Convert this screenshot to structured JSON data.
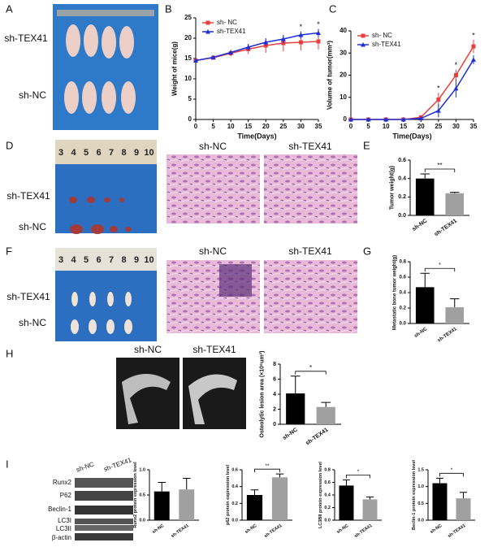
{
  "panels": [
    "A",
    "B",
    "C",
    "D",
    "E",
    "F",
    "G",
    "H",
    "I"
  ],
  "photo_a": {
    "labels": [
      "sh-TEX41",
      "sh-NC"
    ]
  },
  "photo_d": {
    "ruler": [
      "3",
      "4",
      "5",
      "6",
      "7",
      "8",
      "9",
      "10"
    ],
    "labels": [
      "sh-TEX41",
      "sh-NC"
    ],
    "histology": [
      "sh-NC",
      "sh-TEX41"
    ]
  },
  "photo_f": {
    "ruler": [
      "3",
      "4",
      "5",
      "6",
      "7",
      "8",
      "9",
      "10"
    ],
    "labels": [
      "sh-TEX41",
      "sh-NC"
    ],
    "histology": [
      "sh-NC",
      "sh-TEX41"
    ]
  },
  "photo_h": {
    "labels": [
      "sh-NC",
      "sh-TEX41"
    ]
  },
  "blot_i": {
    "lanes": [
      "sh-NC",
      "sh-TEX41"
    ],
    "proteins": [
      "Runx2",
      "P62",
      "Beclin-1",
      "LC3I",
      "LC3II",
      "β-actin"
    ]
  },
  "chart_data": [
    {
      "type": "line",
      "xlabel": "Time(Days)",
      "ylabel": "Weight of mice(g)",
      "legend": "upper left",
      "x": [
        0,
        5,
        10,
        15,
        20,
        25,
        30,
        35
      ],
      "xlim": [
        0,
        35
      ],
      "xticks": [
        0,
        5,
        10,
        15,
        20,
        25,
        30,
        35
      ],
      "ylim": [
        0,
        25
      ],
      "yticks": [
        0,
        5,
        10,
        15,
        20,
        25
      ],
      "series": [
        {
          "name": "sh- NC",
          "color": "#e8403f",
          "values": [
            14.5,
            15.2,
            16.3,
            17.3,
            18.2,
            18.8,
            19.0,
            19.2
          ],
          "errors": [
            0.4,
            0.5,
            0.8,
            1.2,
            1.8,
            2.0,
            2.0,
            2.0
          ]
        },
        {
          "name": "sh-TEX41",
          "color": "#1f2fd6",
          "values": [
            14.5,
            15.3,
            16.5,
            17.8,
            19.0,
            19.8,
            20.8,
            21.3
          ],
          "errors": [
            0.3,
            0.4,
            0.6,
            0.8,
            0.9,
            1.0,
            0.9,
            1.0
          ]
        }
      ],
      "significance": [
        {
          "x": 30,
          "label": "*"
        },
        {
          "x": 35,
          "label": "*"
        }
      ]
    },
    {
      "type": "line",
      "xlabel": "Time(Days)",
      "ylabel": "Volume of tumor(mm³)",
      "legend": "upper left",
      "x": [
        0,
        5,
        10,
        15,
        20,
        25,
        30,
        35
      ],
      "xlim": [
        0,
        35
      ],
      "xticks": [
        0,
        5,
        10,
        15,
        20,
        25,
        30,
        35
      ],
      "ylim": [
        0,
        40
      ],
      "yticks": [
        0,
        10,
        20,
        30,
        40
      ],
      "series": [
        {
          "name": "sh- NC",
          "color": "#e8403f",
          "values": [
            0,
            0,
            0,
            0,
            1,
            9,
            20,
            33
          ],
          "errors": [
            0,
            0,
            0,
            0,
            0.5,
            3,
            2.5,
            3
          ]
        },
        {
          "name": "sh-TEX41",
          "color": "#1f2fd6",
          "values": [
            0,
            0,
            0,
            0,
            0.5,
            4,
            14,
            27
          ],
          "errors": [
            0,
            0,
            0,
            0,
            0.3,
            3,
            4,
            2
          ]
        }
      ],
      "significance": [
        {
          "x": 25,
          "label": "*"
        },
        {
          "x": 30,
          "label": "*"
        },
        {
          "x": 35,
          "label": "*"
        }
      ]
    },
    {
      "type": "bar",
      "ylabel": "Tumor weight(g)",
      "categories": [
        "sh-NC",
        "sh-TEX41"
      ],
      "colors": [
        "#000000",
        "#a0a0a0"
      ],
      "values": [
        0.4,
        0.24
      ],
      "errors": [
        0.05,
        0.01
      ],
      "ylim": [
        0,
        0.6
      ],
      "yticks": [
        {
          "value": 0,
          "label": "0.0"
        },
        0.2,
        0.4,
        0.6
      ],
      "significance": "**"
    },
    {
      "type": "bar",
      "ylabel": "Metastatic bone tumor weight(g)",
      "categories": [
        "sh-NC",
        "sh-TEX41"
      ],
      "colors": [
        "#000000",
        "#a0a0a0"
      ],
      "values": [
        0.47,
        0.21
      ],
      "errors": [
        0.18,
        0.11
      ],
      "ylim": [
        0,
        0.8
      ],
      "yticks": [
        {
          "value": 0,
          "label": "0.0"
        },
        0.2,
        0.4,
        0.6,
        0.8
      ],
      "significance": "*"
    },
    {
      "type": "bar",
      "ylabel": "Osteolytic lesion area (×10⁶um²)",
      "categories": [
        "sh-NC",
        "sh-TEX41"
      ],
      "colors": [
        "#000000",
        "#a0a0a0"
      ],
      "values": [
        4.1,
        2.3
      ],
      "errors": [
        2.3,
        0.6
      ],
      "ylim": [
        0,
        8
      ],
      "yticks": [
        0,
        2,
        4,
        6,
        8
      ],
      "significance": "*"
    },
    {
      "type": "bar",
      "ylabel": "Runx2 protein expression level",
      "categories": [
        "sh-NC",
        "sh-TEX41"
      ],
      "colors": [
        "#000000",
        "#a0a0a0"
      ],
      "values": [
        0.57,
        0.61
      ],
      "errors": [
        0.18,
        0.22
      ],
      "ylim": [
        0,
        1.0
      ],
      "yticks": [
        {
          "value": 0,
          "label": "0.0"
        },
        0.5,
        {
          "value": 1,
          "label": "1.0"
        }
      ]
    },
    {
      "type": "bar",
      "ylabel": "p62 protein expression level",
      "categories": [
        "sh-NC",
        "sh-TEX41"
      ],
      "colors": [
        "#000000",
        "#a0a0a0"
      ],
      "values": [
        0.3,
        0.51
      ],
      "errors": [
        0.06,
        0.04
      ],
      "ylim": [
        0,
        0.6
      ],
      "yticks": [
        {
          "value": 0,
          "label": "0.0"
        },
        0.2,
        0.4,
        0.6
      ],
      "significance": "**"
    },
    {
      "type": "bar",
      "ylabel": "LC3BII protein expression level",
      "categories": [
        "sh-NC",
        "sh-TEX41"
      ],
      "colors": [
        "#000000",
        "#a0a0a0"
      ],
      "values": [
        0.55,
        0.33
      ],
      "errors": [
        0.09,
        0.04
      ],
      "ylim": [
        0,
        0.8
      ],
      "yticks": [
        {
          "value": 0,
          "label": "0.0"
        },
        0.2,
        0.4,
        0.6,
        0.8
      ],
      "significance": "*"
    },
    {
      "type": "bar",
      "ylabel": "Beclin-1 protein expression level",
      "categories": [
        "sh-NC",
        "sh-TEX41"
      ],
      "colors": [
        "#000000",
        "#a0a0a0"
      ],
      "values": [
        1.1,
        0.65
      ],
      "errors": [
        0.15,
        0.18
      ],
      "ylim": [
        0,
        1.5
      ],
      "yticks": [
        {
          "value": 0,
          "label": "0.0"
        },
        0.5,
        {
          "value": 1,
          "label": "1.0"
        },
        1.5
      ],
      "significance": "*"
    }
  ]
}
